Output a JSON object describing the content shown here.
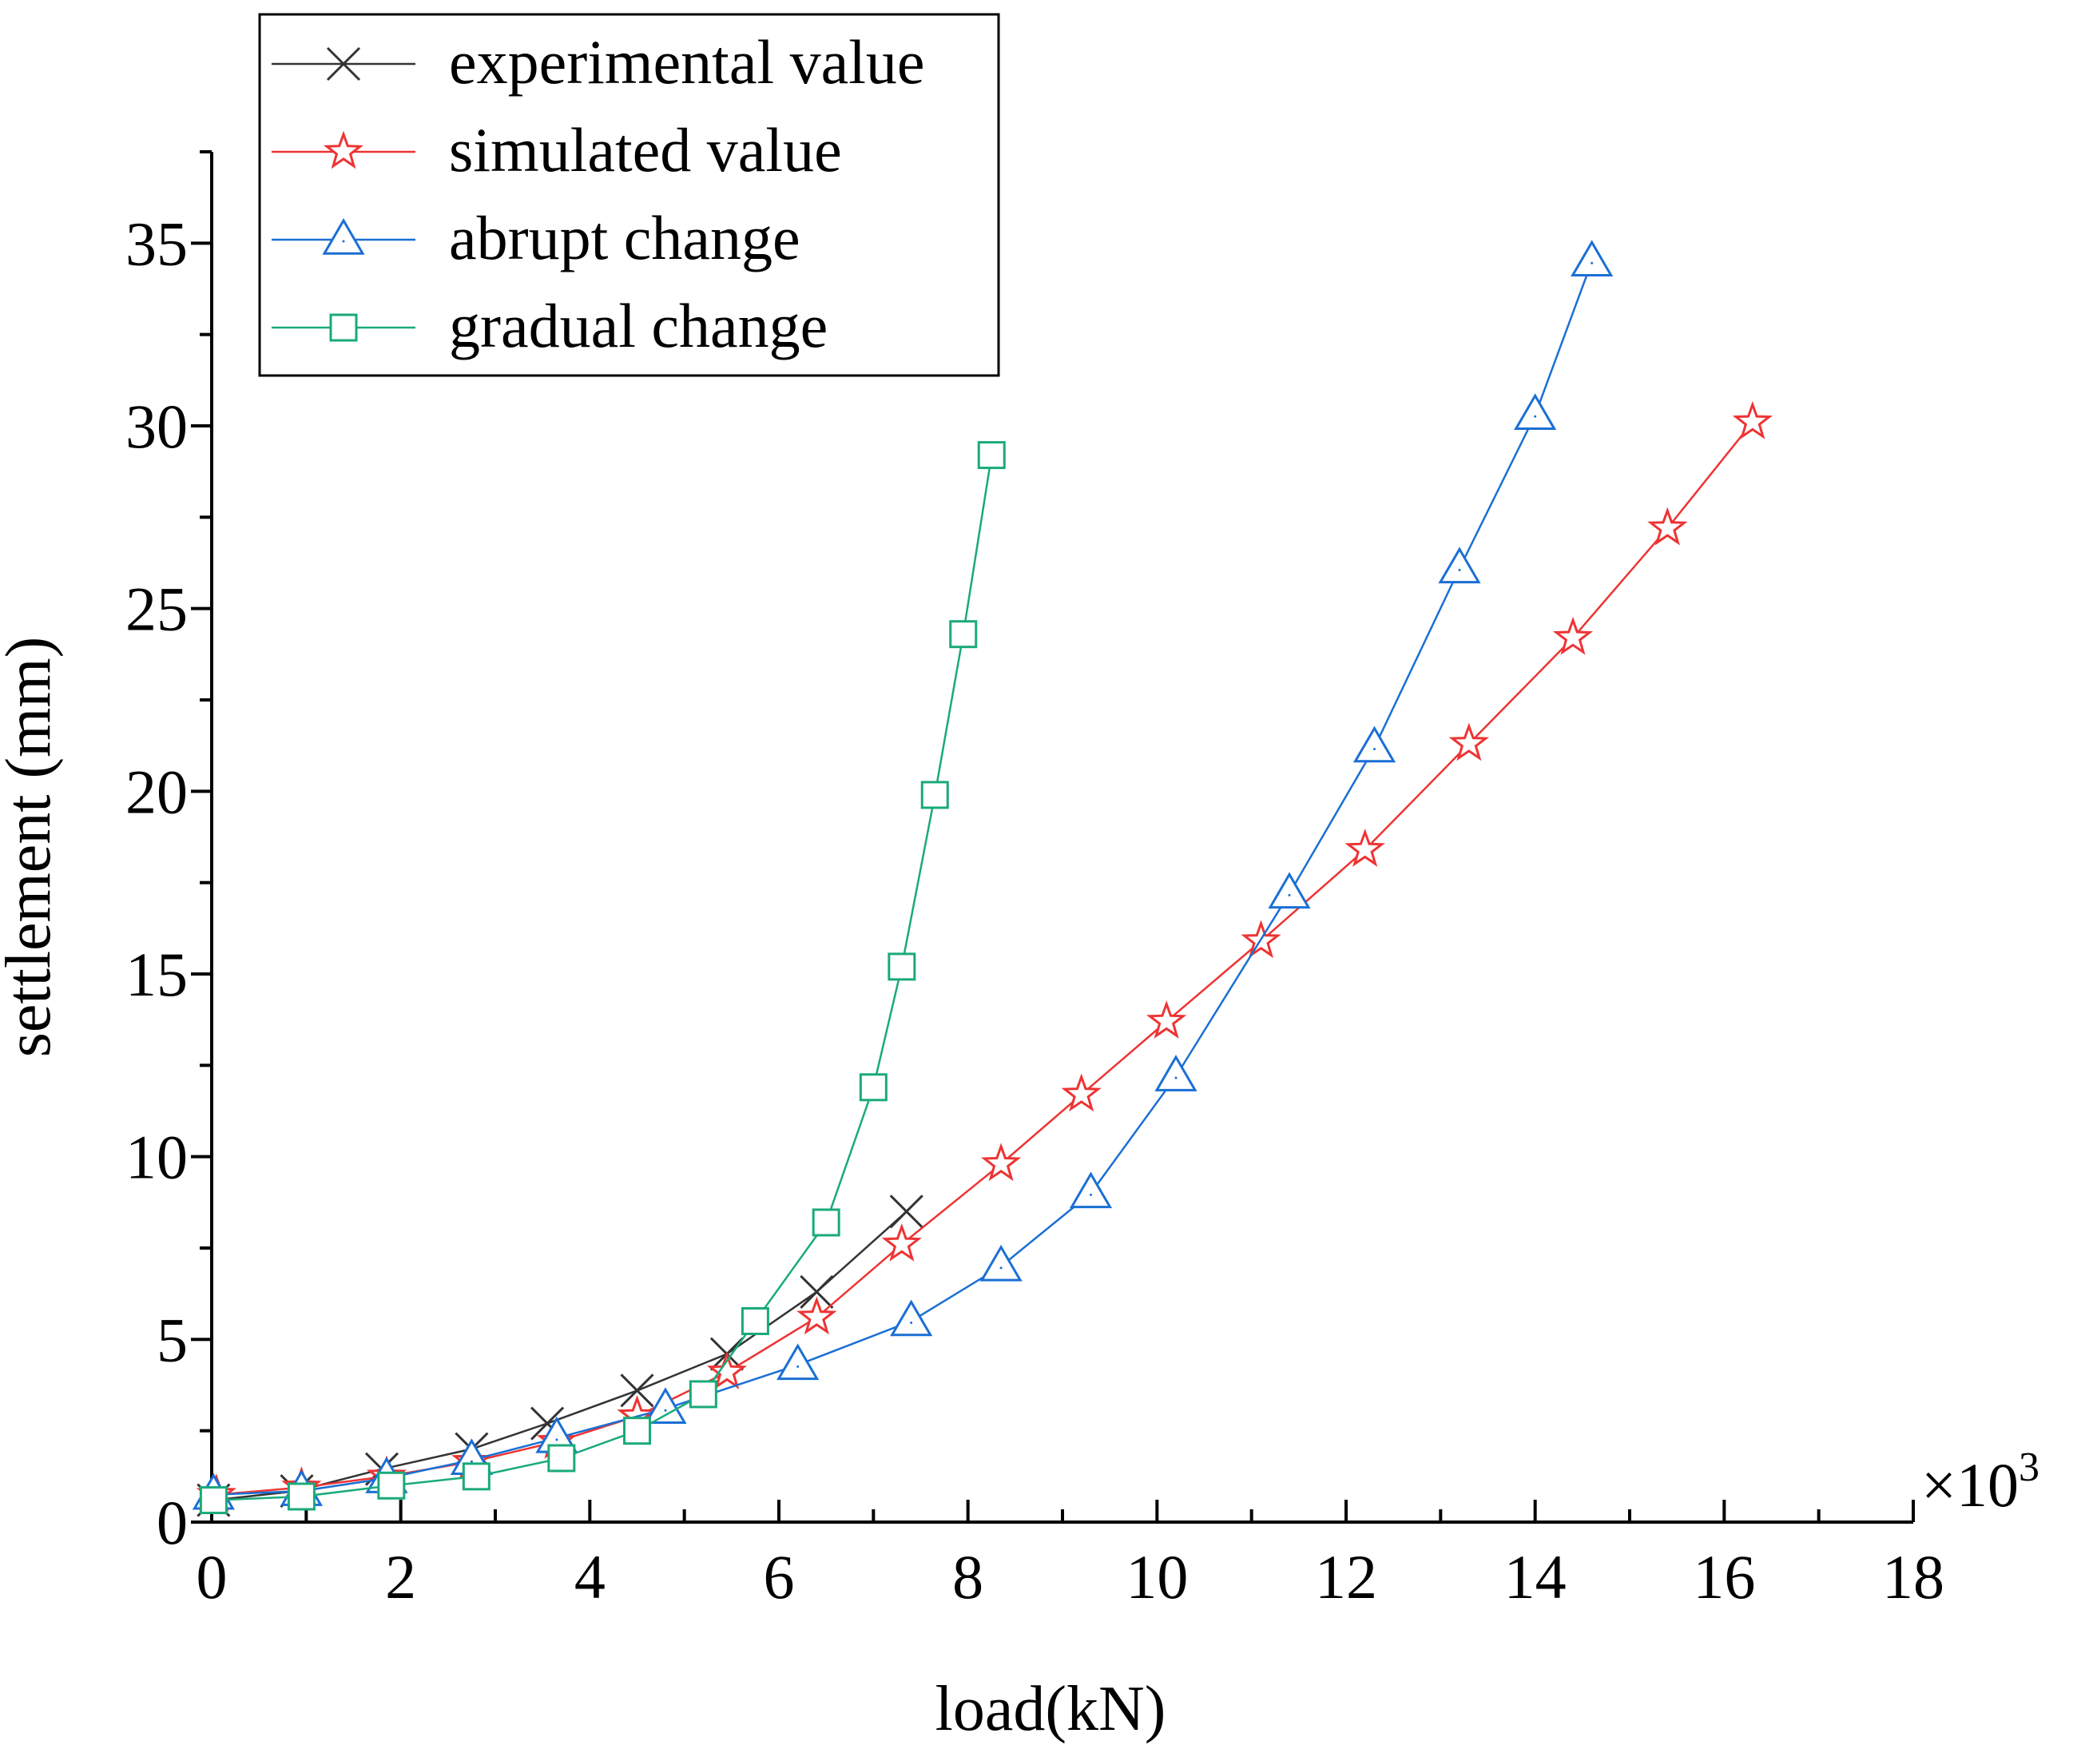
{
  "chart_data": {
    "type": "line",
    "title": "",
    "xlabel": "load(kN)",
    "ylabel": "settlement (mm)",
    "x_multiplier": "×10³",
    "x_multiplier_symbol": "×",
    "x_multiplier_base": "10",
    "x_multiplier_exp": "3",
    "xlim": [
      0,
      18
    ],
    "ylim": [
      0,
      37.5
    ],
    "x_ticks": [
      "0",
      "2",
      "4",
      "6",
      "8",
      "10",
      "12",
      "14",
      "16",
      "18"
    ],
    "y_ticks": [
      "0",
      "5",
      "10",
      "15",
      "20",
      "25",
      "30",
      "35"
    ],
    "legend_position": "top-left",
    "grid": false,
    "series": [
      {
        "name": "experimental value",
        "color": "#333333",
        "marker": "x",
        "x": [
          0.02,
          0.9,
          1.8,
          2.75,
          3.55,
          4.5,
          5.45,
          6.4,
          7.35
        ],
        "y": [
          0.6,
          0.85,
          1.45,
          2.0,
          2.7,
          3.6,
          4.6,
          6.3,
          8.5
        ]
      },
      {
        "name": "simulated value",
        "color": "#ee3333",
        "marker": "star",
        "x": [
          0.05,
          0.95,
          1.85,
          2.75,
          3.65,
          4.5,
          5.45,
          6.4,
          7.3,
          8.35,
          9.2,
          10.1,
          11.1,
          12.2,
          13.3,
          14.4,
          15.4,
          16.3
        ],
        "y": [
          0.75,
          0.95,
          1.25,
          1.65,
          2.2,
          2.9,
          4.1,
          5.6,
          7.6,
          9.8,
          11.7,
          13.7,
          15.9,
          18.4,
          21.3,
          24.2,
          27.2,
          30.1
        ]
      },
      {
        "name": "abrupt change",
        "color": "#1a6fd4",
        "marker": "triangle",
        "x": [
          0.02,
          0.95,
          1.85,
          2.75,
          3.65,
          4.8,
          6.2,
          7.4,
          8.35,
          9.3,
          10.2,
          11.4,
          12.3,
          13.2,
          14.0,
          14.6
        ],
        "y": [
          0.75,
          0.85,
          1.2,
          1.7,
          2.3,
          3.1,
          4.3,
          5.5,
          7.0,
          9.0,
          12.2,
          17.2,
          21.2,
          26.1,
          30.3,
          34.5
        ]
      },
      {
        "name": "gradual change",
        "color": "#1aaa7a",
        "marker": "square",
        "x": [
          0.02,
          0.95,
          1.9,
          2.8,
          3.7,
          4.5,
          5.2,
          5.75,
          6.5,
          7.0,
          7.3,
          7.65,
          7.95,
          8.25
        ],
        "y": [
          0.6,
          0.7,
          1.0,
          1.25,
          1.75,
          2.5,
          3.5,
          5.5,
          8.2,
          11.9,
          15.2,
          19.9,
          24.3,
          29.2
        ]
      }
    ]
  }
}
